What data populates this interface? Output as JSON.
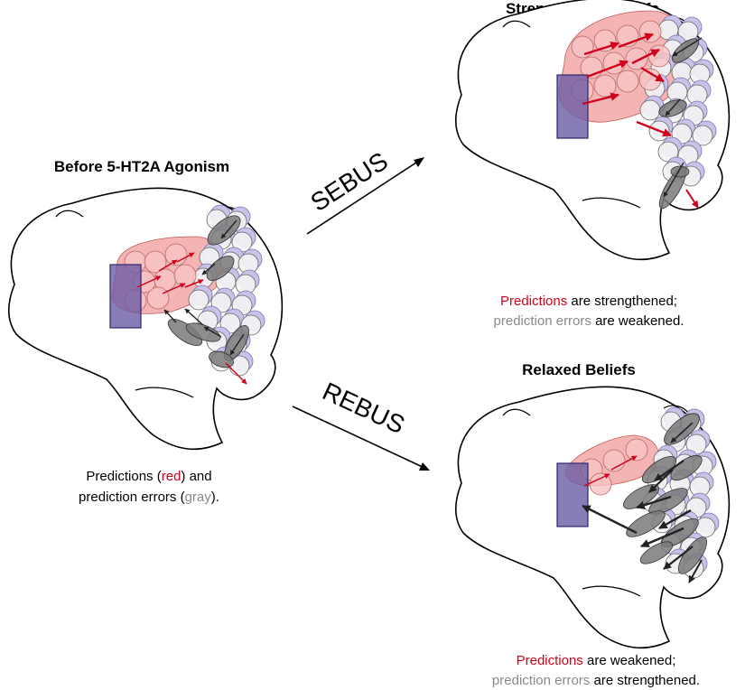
{
  "panels": {
    "before": {
      "title": "Before 5-HT2A Agonism",
      "caption_line1": [
        "Predictions (",
        "red",
        ") and"
      ],
      "caption_line2": [
        "prediction errors (",
        "gray",
        ")."
      ]
    },
    "strengthened": {
      "title": "Strengthened Beliefs",
      "caption_line1": [
        "Predictions",
        " are strengthened;"
      ],
      "caption_line2": [
        "prediction errors",
        " are weakened."
      ]
    },
    "relaxed": {
      "title": "Relaxed Beliefs",
      "caption_line1": [
        "Predictions",
        " are weakened;"
      ],
      "caption_line2": [
        "prediction errors",
        " are strengthened."
      ]
    }
  },
  "arrows": {
    "upper_label": "SEBUS",
    "lower_label": "REBUS"
  },
  "colors": {
    "prediction": "#d0021b",
    "error_text": "#8a8a8a",
    "error_ellipse": "#7a7a7a",
    "node_purple": "#c9c2e8",
    "region_pink": "#f2a7a7",
    "box_fill": "#6b5ca5",
    "box_stroke": "#2e2566"
  }
}
